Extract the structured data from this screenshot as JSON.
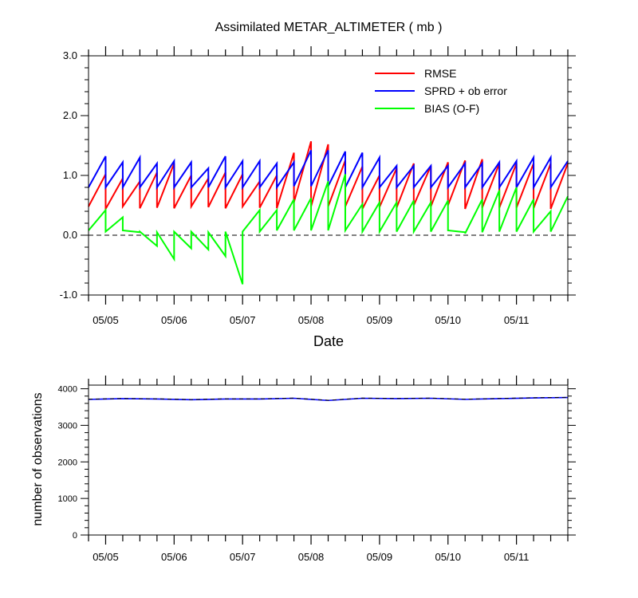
{
  "chart_data": [
    {
      "type": "line",
      "title": "Assimilated METAR_ALTIMETER ( mb )",
      "xlabel": "Date",
      "ylabel": "",
      "xlim": [
        0,
        28
      ],
      "ylim": [
        -1.0,
        3.0
      ],
      "yticks": [
        3.0,
        2.0,
        1.0,
        0.0,
        -1.0
      ],
      "yticklabels": [
        "3.0",
        "2.0",
        "1.0",
        "0.0",
        "-1.0"
      ],
      "xticklabels": [
        {
          "label": "05/05",
          "x": 1
        },
        {
          "label": "05/06",
          "x": 5
        },
        {
          "label": "05/07",
          "x": 9
        },
        {
          "label": "05/08",
          "x": 13
        },
        {
          "label": "05/09",
          "x": 17
        },
        {
          "label": "05/10",
          "x": 21
        },
        {
          "label": "05/11",
          "x": 25
        }
      ],
      "zero_line": true,
      "legend_position": "top-right",
      "series": [
        {
          "name": "RMSE",
          "color": "#ff0000",
          "points": [
            [
              0,
              0.48
            ],
            [
              1,
              1.02
            ],
            [
              1,
              0.44
            ],
            [
              2,
              0.95
            ],
            [
              2,
              0.48
            ],
            [
              3,
              0.9
            ],
            [
              3,
              0.45
            ],
            [
              4,
              1.05
            ],
            [
              4,
              0.46
            ],
            [
              5,
              1.2
            ],
            [
              5,
              0.45
            ],
            [
              6,
              1.0
            ],
            [
              6,
              0.48
            ],
            [
              7,
              0.95
            ],
            [
              7,
              0.47
            ],
            [
              8,
              1.05
            ],
            [
              8,
              0.45
            ],
            [
              9,
              1.02
            ],
            [
              9,
              0.48
            ],
            [
              10,
              0.9
            ],
            [
              10,
              0.46
            ],
            [
              11,
              1.0
            ],
            [
              11,
              0.45
            ],
            [
              12,
              1.38
            ],
            [
              12,
              0.55
            ],
            [
              13,
              1.57
            ],
            [
              13,
              0.48
            ],
            [
              14,
              1.52
            ],
            [
              14,
              0.48
            ],
            [
              15,
              1.25
            ],
            [
              15,
              0.48
            ],
            [
              16,
              1.15
            ],
            [
              16,
              0.44
            ],
            [
              17,
              1.0
            ],
            [
              17,
              0.47
            ],
            [
              18,
              1.12
            ],
            [
              18,
              0.46
            ],
            [
              19,
              1.2
            ],
            [
              19,
              0.5
            ],
            [
              20,
              1.16
            ],
            [
              20,
              0.48
            ],
            [
              21,
              1.22
            ],
            [
              21,
              0.5
            ],
            [
              22,
              1.25
            ],
            [
              22,
              0.44
            ],
            [
              23,
              1.27
            ],
            [
              23,
              0.46
            ],
            [
              24,
              1.2
            ],
            [
              24,
              0.46
            ],
            [
              25,
              1.2
            ],
            [
              25,
              0.46
            ],
            [
              26,
              1.2
            ],
            [
              26,
              0.45
            ],
            [
              27,
              1.2
            ],
            [
              27,
              0.44
            ],
            [
              28,
              1.2
            ]
          ]
        },
        {
          "name": "SPRD + ob error",
          "color": "#0000ff",
          "points": [
            [
              0,
              0.8
            ],
            [
              1,
              1.32
            ],
            [
              1,
              0.8
            ],
            [
              2,
              1.22
            ],
            [
              2,
              0.8
            ],
            [
              3,
              1.3
            ],
            [
              3,
              0.8
            ],
            [
              4,
              1.2
            ],
            [
              4,
              0.8
            ],
            [
              5,
              1.24
            ],
            [
              5,
              0.8
            ],
            [
              6,
              1.22
            ],
            [
              6,
              0.8
            ],
            [
              7,
              1.12
            ],
            [
              7,
              0.8
            ],
            [
              8,
              1.32
            ],
            [
              8,
              0.8
            ],
            [
              9,
              1.24
            ],
            [
              9,
              0.8
            ],
            [
              10,
              1.24
            ],
            [
              10,
              0.8
            ],
            [
              11,
              1.2
            ],
            [
              11,
              0.8
            ],
            [
              12,
              1.22
            ],
            [
              12,
              0.82
            ],
            [
              13,
              1.42
            ],
            [
              13,
              0.82
            ],
            [
              14,
              1.42
            ],
            [
              14,
              0.82
            ],
            [
              15,
              1.4
            ],
            [
              15,
              0.8
            ],
            [
              16,
              1.38
            ],
            [
              16,
              0.8
            ],
            [
              17,
              1.3
            ],
            [
              17,
              0.8
            ],
            [
              18,
              1.16
            ],
            [
              18,
              0.8
            ],
            [
              19,
              1.16
            ],
            [
              19,
              0.8
            ],
            [
              20,
              1.16
            ],
            [
              20,
              0.8
            ],
            [
              21,
              1.16
            ],
            [
              21,
              0.8
            ],
            [
              22,
              1.2
            ],
            [
              22,
              0.8
            ],
            [
              23,
              1.2
            ],
            [
              23,
              0.8
            ],
            [
              24,
              1.22
            ],
            [
              24,
              0.8
            ],
            [
              25,
              1.24
            ],
            [
              25,
              0.8
            ],
            [
              26,
              1.3
            ],
            [
              26,
              0.8
            ],
            [
              27,
              1.3
            ],
            [
              27,
              0.8
            ],
            [
              28,
              1.24
            ]
          ]
        },
        {
          "name": "BIAS (O-F)",
          "color": "#00ff00",
          "points": [
            [
              0,
              0.08
            ],
            [
              1,
              0.42
            ],
            [
              1,
              0.06
            ],
            [
              2,
              0.3
            ],
            [
              2,
              0.08
            ],
            [
              3,
              0.05
            ],
            [
              3,
              0.06
            ],
            [
              4,
              -0.18
            ],
            [
              4,
              0.05
            ],
            [
              5,
              -0.4
            ],
            [
              5,
              0.06
            ],
            [
              6,
              -0.22
            ],
            [
              6,
              0.06
            ],
            [
              7,
              -0.24
            ],
            [
              7,
              0.05
            ],
            [
              8,
              -0.35
            ],
            [
              8,
              0.06
            ],
            [
              9,
              -0.82
            ],
            [
              9,
              0.06
            ],
            [
              10,
              0.42
            ],
            [
              10,
              0.06
            ],
            [
              11,
              0.42
            ],
            [
              11,
              0.08
            ],
            [
              12,
              0.6
            ],
            [
              12,
              0.08
            ],
            [
              13,
              0.62
            ],
            [
              13,
              0.08
            ],
            [
              14,
              0.9
            ],
            [
              14,
              0.08
            ],
            [
              15,
              1.02
            ],
            [
              15,
              0.08
            ],
            [
              16,
              0.52
            ],
            [
              16,
              0.06
            ],
            [
              17,
              0.55
            ],
            [
              17,
              0.06
            ],
            [
              18,
              0.55
            ],
            [
              18,
              0.06
            ],
            [
              19,
              0.58
            ],
            [
              19,
              0.06
            ],
            [
              20,
              0.55
            ],
            [
              20,
              0.06
            ],
            [
              21,
              0.58
            ],
            [
              21,
              0.08
            ],
            [
              22,
              0.05
            ],
            [
              22,
              0.03
            ],
            [
              23,
              0.6
            ],
            [
              23,
              0.05
            ],
            [
              24,
              0.75
            ],
            [
              24,
              0.06
            ],
            [
              25,
              0.8
            ],
            [
              25,
              0.06
            ],
            [
              26,
              0.6
            ],
            [
              26,
              0.06
            ],
            [
              27,
              0.4
            ],
            [
              27,
              0.06
            ],
            [
              28,
              0.65
            ]
          ]
        }
      ]
    },
    {
      "type": "line",
      "title": "",
      "xlabel": "",
      "ylabel": "number of observations",
      "xlim": [
        0,
        28
      ],
      "ylim": [
        0,
        4100
      ],
      "yticks": [
        4000,
        3000,
        2000,
        1000,
        0
      ],
      "yticklabels": [
        "4000",
        "3000",
        "2000",
        "1000",
        "0"
      ],
      "xticklabels": [
        {
          "label": "05/05",
          "x": 1
        },
        {
          "label": "05/06",
          "x": 5
        },
        {
          "label": "05/07",
          "x": 9
        },
        {
          "label": "05/08",
          "x": 13
        },
        {
          "label": "05/09",
          "x": 17
        },
        {
          "label": "05/10",
          "x": 21
        },
        {
          "label": "05/11",
          "x": 25
        }
      ],
      "series": [
        {
          "name": "",
          "color": "#0000ff",
          "points": [
            [
              0,
              3710
            ],
            [
              2,
              3730
            ],
            [
              4,
              3720
            ],
            [
              6,
              3700
            ],
            [
              8,
              3720
            ],
            [
              10,
              3720
            ],
            [
              12,
              3740
            ],
            [
              14,
              3680
            ],
            [
              16,
              3740
            ],
            [
              18,
              3730
            ],
            [
              20,
              3740
            ],
            [
              22,
              3710
            ],
            [
              24,
              3730
            ],
            [
              26,
              3750
            ],
            [
              28,
              3760
            ]
          ]
        },
        {
          "name": "",
          "color": "#000000",
          "dashed": true,
          "points": [
            [
              0,
              3715
            ],
            [
              2,
              3735
            ],
            [
              4,
              3725
            ],
            [
              6,
              3705
            ],
            [
              8,
              3725
            ],
            [
              10,
              3725
            ],
            [
              12,
              3745
            ],
            [
              14,
              3685
            ],
            [
              16,
              3745
            ],
            [
              18,
              3735
            ],
            [
              20,
              3745
            ],
            [
              22,
              3715
            ],
            [
              24,
              3735
            ],
            [
              26,
              3755
            ],
            [
              28,
              3765
            ]
          ]
        }
      ]
    }
  ]
}
